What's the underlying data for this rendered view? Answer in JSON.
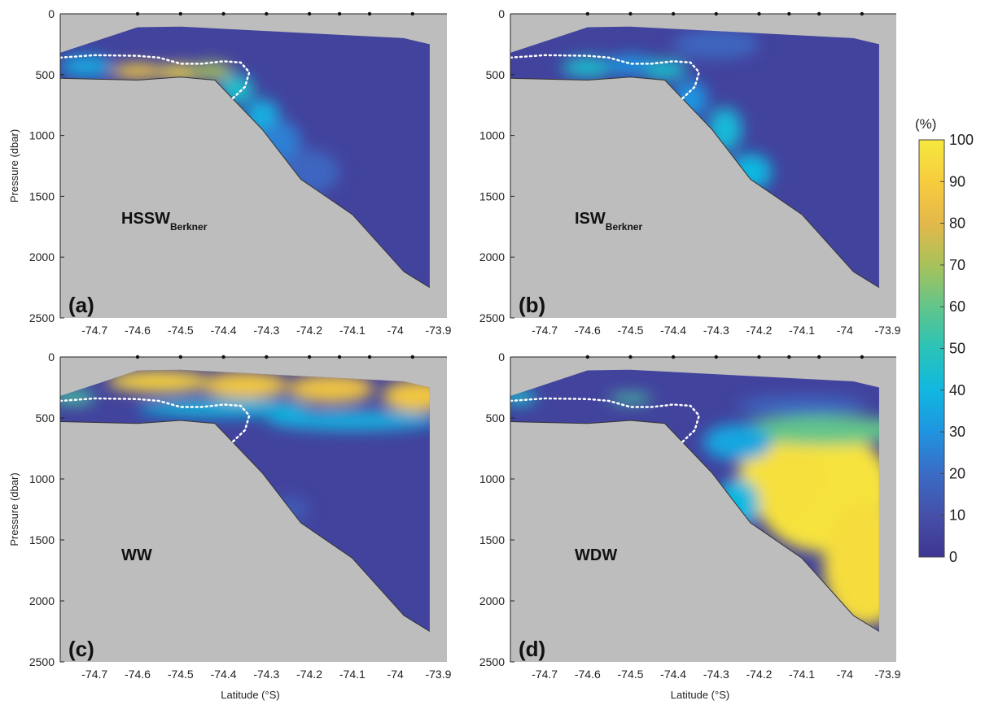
{
  "chart_data": [
    {
      "type": "heatmap",
      "panel_label": "(a)",
      "water_mass": "HSSW",
      "water_mass_sub": "Berkner",
      "ylabel": "Pressure (dbar)",
      "xlabel": "",
      "xlim": [
        -74.78,
        -73.88
      ],
      "ylim": [
        2500,
        0
      ],
      "xticks": [
        -74.7,
        -74.6,
        -74.5,
        -74.4,
        -74.3,
        -74.2,
        -74.1,
        -74,
        -73.9
      ],
      "yticks": [
        0,
        500,
        1000,
        1500,
        2000,
        2500
      ],
      "stations_lat": [
        -74.6,
        -74.5,
        -74.4,
        -74.3,
        -74.2,
        -74.13,
        -74.06,
        -73.96
      ],
      "features": [
        {
          "lat": -74.72,
          "p": 430,
          "r_lat": 0.06,
          "r_p": 90,
          "value": 35
        },
        {
          "lat": -74.6,
          "p": 470,
          "r_lat": 0.06,
          "r_p": 60,
          "value": 90
        },
        {
          "lat": -74.5,
          "p": 480,
          "r_lat": 0.06,
          "r_p": 60,
          "value": 95
        },
        {
          "lat": -74.43,
          "p": 470,
          "r_lat": 0.05,
          "r_p": 70,
          "value": 70
        },
        {
          "lat": -74.37,
          "p": 620,
          "r_lat": 0.04,
          "r_p": 120,
          "value": 45
        },
        {
          "lat": -74.31,
          "p": 850,
          "r_lat": 0.04,
          "r_p": 150,
          "value": 38
        },
        {
          "lat": -74.27,
          "p": 1050,
          "r_lat": 0.05,
          "r_p": 170,
          "value": 25
        },
        {
          "lat": -74.2,
          "p": 1300,
          "r_lat": 0.07,
          "r_p": 180,
          "value": 18
        }
      ]
    },
    {
      "type": "heatmap",
      "panel_label": "(b)",
      "water_mass": "ISW",
      "water_mass_sub": "Berkner",
      "ylabel": "",
      "xlabel": "",
      "xlim": [
        -74.78,
        -73.88
      ],
      "ylim": [
        2500,
        0
      ],
      "xticks": [
        -74.7,
        -74.6,
        -74.5,
        -74.4,
        -74.3,
        -74.2,
        -74.1,
        -74,
        -73.9
      ],
      "yticks": [
        0,
        500,
        1000,
        1500,
        2000,
        2500
      ],
      "stations_lat": [
        -74.6,
        -74.5,
        -74.4,
        -74.3,
        -74.2,
        -74.13,
        -74.06,
        -73.96
      ],
      "features": [
        {
          "lat": -74.6,
          "p": 440,
          "r_lat": 0.06,
          "r_p": 80,
          "value": 45
        },
        {
          "lat": -74.5,
          "p": 420,
          "r_lat": 0.06,
          "r_p": 80,
          "value": 30
        },
        {
          "lat": -74.42,
          "p": 460,
          "r_lat": 0.05,
          "r_p": 80,
          "value": 45
        },
        {
          "lat": -74.36,
          "p": 700,
          "r_lat": 0.04,
          "r_p": 150,
          "value": 30
        },
        {
          "lat": -74.28,
          "p": 950,
          "r_lat": 0.04,
          "r_p": 180,
          "value": 42
        },
        {
          "lat": -74.22,
          "p": 1300,
          "r_lat": 0.05,
          "r_p": 150,
          "value": 40
        },
        {
          "lat": -74.3,
          "p": 250,
          "r_lat": 0.1,
          "r_p": 120,
          "value": 18
        }
      ]
    },
    {
      "type": "heatmap",
      "panel_label": "(c)",
      "water_mass": "WW",
      "water_mass_sub": "",
      "ylabel": "Pressure (dbar)",
      "xlabel": "Latitude (°S)",
      "xlim": [
        -74.78,
        -73.88
      ],
      "ylim": [
        2500,
        0
      ],
      "xticks": [
        -74.7,
        -74.6,
        -74.5,
        -74.4,
        -74.3,
        -74.2,
        -74.1,
        -74,
        -73.9
      ],
      "yticks": [
        0,
        500,
        1000,
        1500,
        2000,
        2500
      ],
      "stations_lat": [
        -74.6,
        -74.5,
        -74.4,
        -74.3,
        -74.2,
        -74.13,
        -74.06,
        -73.96
      ],
      "features": [
        {
          "lat": -74.75,
          "p": 330,
          "r_lat": 0.05,
          "r_p": 60,
          "value": 55
        },
        {
          "lat": -74.55,
          "p": 200,
          "r_lat": 0.12,
          "r_p": 90,
          "value": 92
        },
        {
          "lat": -74.35,
          "p": 230,
          "r_lat": 0.1,
          "r_p": 110,
          "value": 88
        },
        {
          "lat": -74.15,
          "p": 260,
          "r_lat": 0.1,
          "r_p": 120,
          "value": 85
        },
        {
          "lat": -73.95,
          "p": 320,
          "r_lat": 0.08,
          "r_p": 130,
          "value": 88
        },
        {
          "lat": -74.4,
          "p": 420,
          "r_lat": 0.2,
          "r_p": 70,
          "value": 40
        },
        {
          "lat": -74.1,
          "p": 520,
          "r_lat": 0.2,
          "r_p": 80,
          "value": 38
        },
        {
          "lat": -74.25,
          "p": 1250,
          "r_lat": 0.05,
          "r_p": 100,
          "value": 14
        }
      ]
    },
    {
      "type": "heatmap",
      "panel_label": "(d)",
      "water_mass": "WDW",
      "water_mass_sub": "",
      "ylabel": "",
      "xlabel": "Latitude (°S)",
      "xlim": [
        -74.78,
        -73.88
      ],
      "ylim": [
        2500,
        0
      ],
      "xticks": [
        -74.7,
        -74.6,
        -74.5,
        -74.4,
        -74.3,
        -74.2,
        -74.1,
        -74,
        -73.9
      ],
      "yticks": [
        0,
        500,
        1000,
        1500,
        2000,
        2500
      ],
      "stations_lat": [
        -74.6,
        -74.5,
        -74.4,
        -74.3,
        -74.2,
        -74.13,
        -74.06,
        -73.96
      ],
      "features": [
        {
          "lat": -74.76,
          "p": 330,
          "r_lat": 0.04,
          "r_p": 60,
          "value": 45
        },
        {
          "lat": -74.5,
          "p": 340,
          "r_lat": 0.05,
          "r_p": 40,
          "value": 55
        },
        {
          "lat": -74.05,
          "p": 1100,
          "r_lat": 0.16,
          "r_p": 500,
          "value": 98
        },
        {
          "lat": -74.15,
          "p": 1000,
          "r_lat": 0.1,
          "r_p": 350,
          "value": 97
        },
        {
          "lat": -73.95,
          "p": 1700,
          "r_lat": 0.1,
          "r_p": 500,
          "value": 96
        },
        {
          "lat": -74.05,
          "p": 600,
          "r_lat": 0.2,
          "r_p": 120,
          "value": 60
        },
        {
          "lat": -74.25,
          "p": 700,
          "r_lat": 0.08,
          "r_p": 150,
          "value": 35
        },
        {
          "lat": -74.25,
          "p": 1200,
          "r_lat": 0.05,
          "r_p": 200,
          "value": 40
        },
        {
          "lat": -74.1,
          "p": 400,
          "r_lat": 0.15,
          "r_p": 80,
          "value": 18
        }
      ]
    }
  ],
  "section": {
    "surface": [
      [
        -74.78,
        320
      ],
      [
        -74.6,
        110
      ],
      [
        -74.5,
        105
      ],
      [
        -73.98,
        200
      ],
      [
        -73.92,
        250
      ]
    ],
    "seabed": [
      [
        -74.78,
        530
      ],
      [
        -74.6,
        545
      ],
      [
        -74.5,
        520
      ],
      [
        -74.42,
        545
      ],
      [
        -74.31,
        950
      ],
      [
        -74.22,
        1360
      ],
      [
        -74.1,
        1650
      ],
      [
        -73.98,
        2120
      ],
      [
        -73.92,
        2250
      ]
    ],
    "dashed_contour": [
      [
        -74.78,
        360
      ],
      [
        -74.7,
        340
      ],
      [
        -74.6,
        345
      ],
      [
        -74.55,
        360
      ],
      [
        -74.5,
        410
      ],
      [
        -74.45,
        410
      ],
      [
        -74.4,
        390
      ],
      [
        -74.36,
        400
      ],
      [
        -74.34,
        480
      ],
      [
        -74.35,
        600
      ],
      [
        -74.38,
        700
      ]
    ]
  },
  "colorbar": {
    "unit": "(%)",
    "ticks": [
      0,
      10,
      20,
      30,
      40,
      50,
      60,
      70,
      80,
      90,
      100
    ],
    "colors": [
      "#3e3592",
      "#4650a8",
      "#3a6cc6",
      "#1f94e0",
      "#11b8e0",
      "#2ac3b8",
      "#62c58a",
      "#a8c25a",
      "#e4b84a",
      "#f7cc3e",
      "#f6e93e"
    ]
  }
}
